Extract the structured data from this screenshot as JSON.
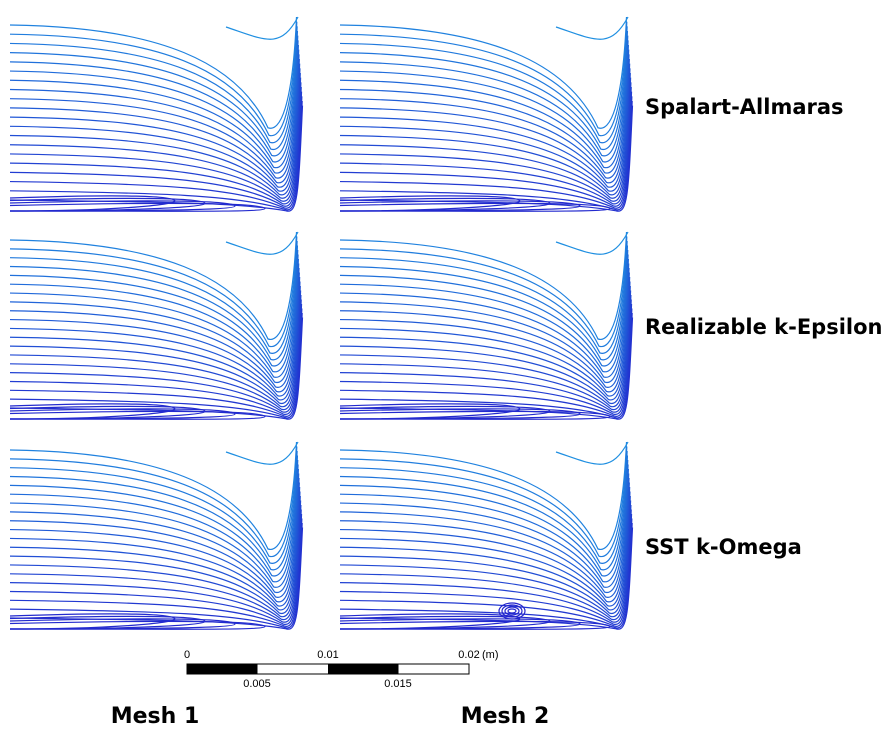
{
  "rows": [
    {
      "label": "Spalart-Allmaras"
    },
    {
      "label": "Realizable k-Epsilon"
    },
    {
      "label": "SST k-Omega"
    }
  ],
  "columns": [
    {
      "label": "Mesh 1"
    },
    {
      "label": "Mesh 2"
    }
  ],
  "scale_bar": {
    "top_labels": [
      "0",
      "0.01",
      "0.02"
    ],
    "unit": "(m)",
    "bottom_labels": [
      "0.005",
      "0.015"
    ]
  }
}
